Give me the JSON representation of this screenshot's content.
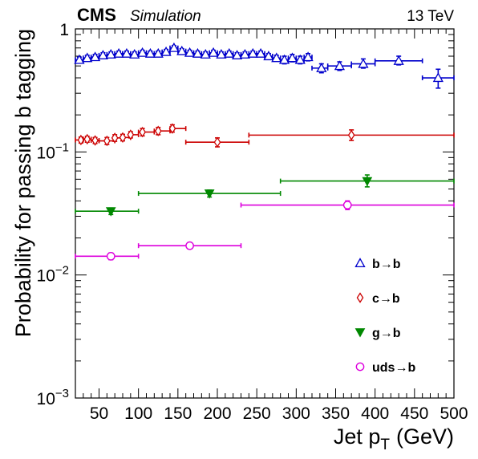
{
  "header": {
    "experiment": "CMS",
    "status": "Simulation",
    "energy": "13 TeV"
  },
  "chart_data": {
    "type": "scatter",
    "xlabel": "Jet p",
    "xlabel_sub": "T",
    "xlabel_unit": "(GeV)",
    "ylabel": "Probability for passing b tagging",
    "xlim": [
      20,
      500
    ],
    "ylim": [
      0.001,
      1
    ],
    "yscale": "log",
    "x_ticks": [
      50,
      100,
      150,
      200,
      250,
      300,
      350,
      400,
      450,
      500
    ],
    "x_tick_labels": [
      "50",
      "100",
      "150",
      "200",
      "250",
      "300",
      "350",
      "400",
      "450",
      "500"
    ],
    "y_tick_labels": [
      {
        "value": 1,
        "base": "1",
        "exp": ""
      },
      {
        "value": 0.1,
        "base": "10",
        "exp": "−1"
      },
      {
        "value": 0.01,
        "base": "10",
        "exp": "−2"
      },
      {
        "value": 0.001,
        "base": "10",
        "exp": "−3"
      }
    ],
    "legend_position": "lower-right",
    "series": [
      {
        "name": "b→b",
        "marker": "triangle-open",
        "color": "#0000cc",
        "points": [
          {
            "x": 25,
            "xlo": 20,
            "xhi": 30,
            "y": 0.56,
            "ylo": 0.53,
            "yhi": 0.59
          },
          {
            "x": 35,
            "xlo": 30,
            "xhi": 40,
            "y": 0.58,
            "ylo": 0.55,
            "yhi": 0.61
          },
          {
            "x": 45,
            "xlo": 40,
            "xhi": 50,
            "y": 0.59,
            "ylo": 0.56,
            "yhi": 0.62
          },
          {
            "x": 55,
            "xlo": 50,
            "xhi": 60,
            "y": 0.61,
            "ylo": 0.58,
            "yhi": 0.64
          },
          {
            "x": 65,
            "xlo": 60,
            "xhi": 70,
            "y": 0.62,
            "ylo": 0.59,
            "yhi": 0.65
          },
          {
            "x": 75,
            "xlo": 70,
            "xhi": 80,
            "y": 0.63,
            "ylo": 0.6,
            "yhi": 0.66
          },
          {
            "x": 85,
            "xlo": 80,
            "xhi": 90,
            "y": 0.63,
            "ylo": 0.6,
            "yhi": 0.66
          },
          {
            "x": 95,
            "xlo": 90,
            "xhi": 100,
            "y": 0.62,
            "ylo": 0.59,
            "yhi": 0.65
          },
          {
            "x": 105,
            "xlo": 100,
            "xhi": 110,
            "y": 0.64,
            "ylo": 0.61,
            "yhi": 0.67
          },
          {
            "x": 115,
            "xlo": 110,
            "xhi": 120,
            "y": 0.63,
            "ylo": 0.6,
            "yhi": 0.66
          },
          {
            "x": 125,
            "xlo": 120,
            "xhi": 130,
            "y": 0.63,
            "ylo": 0.6,
            "yhi": 0.66
          },
          {
            "x": 135,
            "xlo": 130,
            "xhi": 140,
            "y": 0.65,
            "ylo": 0.62,
            "yhi": 0.68
          },
          {
            "x": 145,
            "xlo": 140,
            "xhi": 150,
            "y": 0.7,
            "ylo": 0.67,
            "yhi": 0.73
          },
          {
            "x": 155,
            "xlo": 150,
            "xhi": 160,
            "y": 0.66,
            "ylo": 0.63,
            "yhi": 0.69
          },
          {
            "x": 165,
            "xlo": 160,
            "xhi": 170,
            "y": 0.64,
            "ylo": 0.61,
            "yhi": 0.67
          },
          {
            "x": 175,
            "xlo": 170,
            "xhi": 180,
            "y": 0.63,
            "ylo": 0.6,
            "yhi": 0.66
          },
          {
            "x": 185,
            "xlo": 180,
            "xhi": 190,
            "y": 0.62,
            "ylo": 0.59,
            "yhi": 0.65
          },
          {
            "x": 195,
            "xlo": 190,
            "xhi": 200,
            "y": 0.64,
            "ylo": 0.61,
            "yhi": 0.67
          },
          {
            "x": 205,
            "xlo": 200,
            "xhi": 210,
            "y": 0.62,
            "ylo": 0.59,
            "yhi": 0.65
          },
          {
            "x": 215,
            "xlo": 210,
            "xhi": 220,
            "y": 0.63,
            "ylo": 0.6,
            "yhi": 0.66
          },
          {
            "x": 225,
            "xlo": 220,
            "xhi": 230,
            "y": 0.61,
            "ylo": 0.58,
            "yhi": 0.64
          },
          {
            "x": 235,
            "xlo": 230,
            "xhi": 240,
            "y": 0.62,
            "ylo": 0.59,
            "yhi": 0.65
          },
          {
            "x": 245,
            "xlo": 240,
            "xhi": 250,
            "y": 0.63,
            "ylo": 0.6,
            "yhi": 0.66
          },
          {
            "x": 255,
            "xlo": 250,
            "xhi": 260,
            "y": 0.63,
            "ylo": 0.6,
            "yhi": 0.66
          },
          {
            "x": 265,
            "xlo": 260,
            "xhi": 270,
            "y": 0.6,
            "ylo": 0.57,
            "yhi": 0.63
          },
          {
            "x": 275,
            "xlo": 270,
            "xhi": 280,
            "y": 0.58,
            "ylo": 0.55,
            "yhi": 0.61
          },
          {
            "x": 285,
            "xlo": 280,
            "xhi": 290,
            "y": 0.56,
            "ylo": 0.52,
            "yhi": 0.6
          },
          {
            "x": 295,
            "xlo": 290,
            "xhi": 300,
            "y": 0.58,
            "ylo": 0.54,
            "yhi": 0.62
          },
          {
            "x": 305,
            "xlo": 300,
            "xhi": 310,
            "y": 0.56,
            "ylo": 0.52,
            "yhi": 0.6
          },
          {
            "x": 315,
            "xlo": 310,
            "xhi": 320,
            "y": 0.59,
            "ylo": 0.55,
            "yhi": 0.63
          },
          {
            "x": 332,
            "xlo": 320,
            "xhi": 340,
            "y": 0.48,
            "ylo": 0.44,
            "yhi": 0.52
          },
          {
            "x": 355,
            "xlo": 340,
            "xhi": 370,
            "y": 0.5,
            "ylo": 0.46,
            "yhi": 0.54
          },
          {
            "x": 385,
            "xlo": 370,
            "xhi": 400,
            "y": 0.52,
            "ylo": 0.48,
            "yhi": 0.57
          },
          {
            "x": 430,
            "xlo": 400,
            "xhi": 460,
            "y": 0.55,
            "ylo": 0.51,
            "yhi": 0.6
          },
          {
            "x": 480,
            "xlo": 460,
            "xhi": 500,
            "y": 0.4,
            "ylo": 0.33,
            "yhi": 0.47
          }
        ]
      },
      {
        "name": "c→b",
        "marker": "diamond-open",
        "color": "#cc0000",
        "points": [
          {
            "x": 27,
            "xlo": 20,
            "xhi": 30,
            "y": 0.125,
            "ylo": 0.118,
            "yhi": 0.132
          },
          {
            "x": 35,
            "xlo": 30,
            "xhi": 40,
            "y": 0.127,
            "ylo": 0.12,
            "yhi": 0.134
          },
          {
            "x": 45,
            "xlo": 40,
            "xhi": 50,
            "y": 0.124,
            "ylo": 0.117,
            "yhi": 0.131
          },
          {
            "x": 60,
            "xlo": 50,
            "xhi": 70,
            "y": 0.123,
            "ylo": 0.115,
            "yhi": 0.131
          },
          {
            "x": 70,
            "xlo": 70,
            "xhi": 80,
            "y": 0.13,
            "ylo": 0.122,
            "yhi": 0.138
          },
          {
            "x": 80,
            "xlo": 80,
            "xhi": 90,
            "y": 0.131,
            "ylo": 0.123,
            "yhi": 0.139
          },
          {
            "x": 90,
            "xlo": 90,
            "xhi": 100,
            "y": 0.138,
            "ylo": 0.13,
            "yhi": 0.146
          },
          {
            "x": 105,
            "xlo": 100,
            "xhi": 120,
            "y": 0.145,
            "ylo": 0.135,
            "yhi": 0.155
          },
          {
            "x": 125,
            "xlo": 120,
            "xhi": 140,
            "y": 0.148,
            "ylo": 0.138,
            "yhi": 0.158
          },
          {
            "x": 143,
            "xlo": 140,
            "xhi": 160,
            "y": 0.155,
            "ylo": 0.145,
            "yhi": 0.166
          },
          {
            "x": 200,
            "xlo": 160,
            "xhi": 240,
            "y": 0.12,
            "ylo": 0.11,
            "yhi": 0.13
          },
          {
            "x": 370,
            "xlo": 240,
            "xhi": 500,
            "y": 0.137,
            "ylo": 0.124,
            "yhi": 0.151
          }
        ]
      },
      {
        "name": "g→b",
        "marker": "triangle-down-filled",
        "color": "#008800",
        "points": [
          {
            "x": 65,
            "xlo": 20,
            "xhi": 100,
            "y": 0.033,
            "ylo": 0.031,
            "yhi": 0.035
          },
          {
            "x": 190,
            "xlo": 100,
            "xhi": 280,
            "y": 0.046,
            "ylo": 0.043,
            "yhi": 0.049
          },
          {
            "x": 390,
            "xlo": 280,
            "xhi": 500,
            "y": 0.058,
            "ylo": 0.052,
            "yhi": 0.065
          }
        ]
      },
      {
        "name": "uds→b",
        "marker": "circle-open",
        "color": "#dd00dd",
        "points": [
          {
            "x": 65,
            "xlo": 20,
            "xhi": 100,
            "y": 0.0142,
            "ylo": 0.0133,
            "yhi": 0.0151
          },
          {
            "x": 165,
            "xlo": 100,
            "xhi": 230,
            "y": 0.0173,
            "ylo": 0.0163,
            "yhi": 0.0183
          },
          {
            "x": 365,
            "xlo": 230,
            "xhi": 500,
            "y": 0.037,
            "ylo": 0.034,
            "yhi": 0.04
          }
        ]
      }
    ]
  }
}
